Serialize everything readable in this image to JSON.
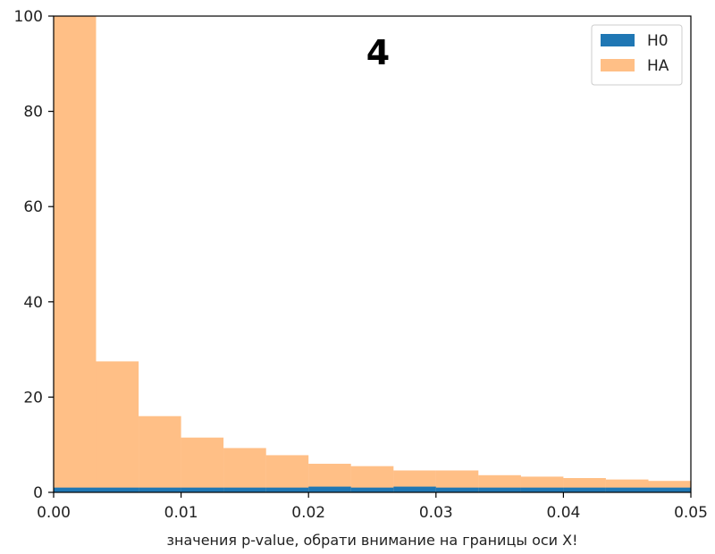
{
  "chart_data": {
    "type": "bar",
    "title": "",
    "annotation": "4",
    "xlabel": "значения p-value, обрати внимание на границы оси X!",
    "ylabel": "",
    "xlim": [
      0.0,
      0.05
    ],
    "ylim": [
      0,
      100
    ],
    "x_ticks": [
      0.0,
      0.01,
      0.02,
      0.03,
      0.04,
      0.05
    ],
    "x_tick_labels": [
      "0.00",
      "0.01",
      "0.02",
      "0.03",
      "0.04",
      "0.05"
    ],
    "y_ticks": [
      0,
      20,
      40,
      60,
      80,
      100
    ],
    "y_tick_labels": [
      "0",
      "20",
      "40",
      "60",
      "80",
      "100"
    ],
    "grid": false,
    "legend_position": "top-right",
    "bin_edges": [
      0.0,
      0.00333,
      0.00667,
      0.01,
      0.01333,
      0.01667,
      0.02,
      0.02333,
      0.02667,
      0.03,
      0.03333,
      0.03667,
      0.04,
      0.04333,
      0.04667,
      0.05
    ],
    "series": [
      {
        "name": "H0",
        "color": "#1f77b4",
        "opacity": 1.0,
        "values": [
          1.0,
          1.0,
          1.0,
          1.0,
          1.0,
          1.0,
          1.2,
          1.0,
          1.2,
          1.0,
          1.0,
          1.0,
          1.0,
          1.0,
          1.0
        ]
      },
      {
        "name": "HA",
        "color": "#ff7f0e",
        "opacity": 0.5,
        "values": [
          100,
          27.5,
          16,
          11.5,
          9.3,
          7.8,
          6,
          5.5,
          4.6,
          4.6,
          3.6,
          3.3,
          3.0,
          2.7,
          2.4
        ]
      }
    ]
  }
}
